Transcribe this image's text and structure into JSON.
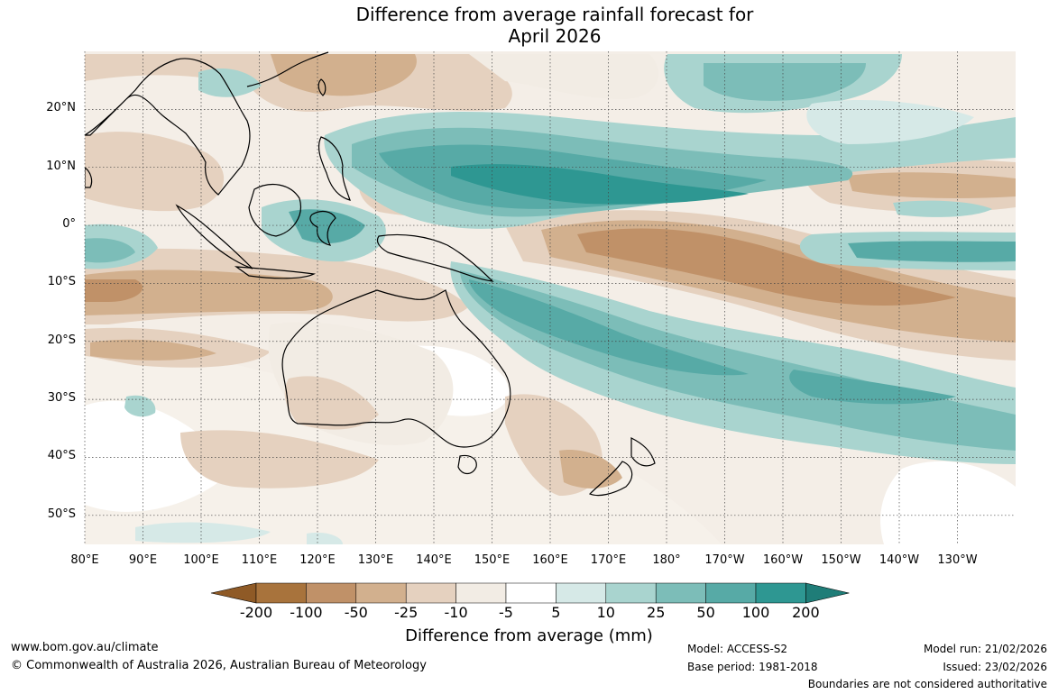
{
  "title": {
    "line1": "Difference from average rainfall forecast for",
    "line2": "April 2026"
  },
  "map": {
    "lat_labels": [
      "20°N",
      "10°N",
      "0°",
      "10°S",
      "20°S",
      "30°S",
      "40°S",
      "50°S"
    ],
    "lon_labels": [
      "80°E",
      "90°E",
      "100°E",
      "110°E",
      "120°E",
      "130°E",
      "140°E",
      "150°E",
      "160°E",
      "170°E",
      "180°",
      "170°W",
      "160°W",
      "150°W",
      "140°W",
      "130°W"
    ],
    "extent": {
      "lon_min": 80,
      "lon_max": 240,
      "lat_min": -55,
      "lat_max": 30
    }
  },
  "colorbar": {
    "title": "Difference from average (mm)",
    "labels": [
      "-200",
      "-100",
      "-50",
      "-25",
      "-10",
      "-5",
      "5",
      "10",
      "25",
      "50",
      "100",
      "200"
    ],
    "colors": [
      "#a8733c",
      "#c09168",
      "#d2b08e",
      "#e5d1bf",
      "#f2ece4",
      "#ffffff",
      "#d6e9e7",
      "#a9d4cf",
      "#7cbdb8",
      "#57aaa6",
      "#2e9792"
    ],
    "extend_low_color": "#8f5a26",
    "extend_high_color": "#1f7d78"
  },
  "footer": {
    "website": "www.bom.gov.au/climate",
    "copyright": "© Commonwealth of Australia 2026, Australian Bureau of Meteorology",
    "model": "Model: ACCESS-S2",
    "base_period": "Base period: 1981-2018",
    "model_run": "Model run: 21/02/2026",
    "issued": "Issued: 23/02/2026",
    "disclaimer": "Boundaries are not considered authoritative"
  }
}
